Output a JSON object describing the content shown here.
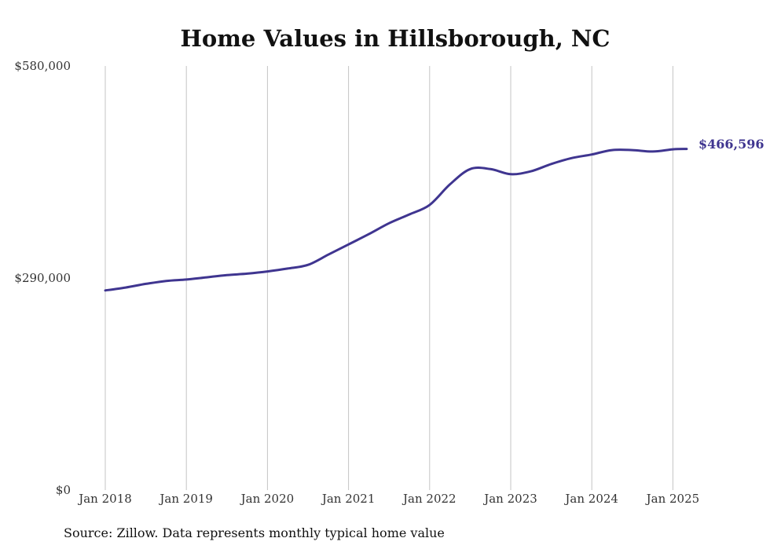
{
  "chart_data": {
    "type": "line",
    "title": "Home Values in Hillsborough, NC",
    "xlabel": "",
    "ylabel": "",
    "ylim": [
      0,
      580000
    ],
    "ytick_values": [
      0,
      290000,
      580000
    ],
    "ytick_labels": [
      "$0",
      "$290,000",
      "$580,000"
    ],
    "xtick_labels": [
      "Jan 2018",
      "Jan 2019",
      "Jan 2020",
      "Jan 2021",
      "Jan 2022",
      "Jan 2023",
      "Jan 2024",
      "Jan 2025"
    ],
    "xtick_years": [
      2018,
      2019,
      2020,
      2021,
      2022,
      2023,
      2024,
      2025
    ],
    "grid": "vertical",
    "line_color": "#3f3590",
    "series": [
      {
        "values": [
          [
            2018.0,
            273000
          ],
          [
            2018.25,
            277000
          ],
          [
            2018.5,
            282000
          ],
          [
            2018.75,
            286000
          ],
          [
            2019.0,
            288000
          ],
          [
            2019.25,
            291000
          ],
          [
            2019.5,
            294000
          ],
          [
            2019.75,
            296000
          ],
          [
            2020.0,
            299000
          ],
          [
            2020.25,
            303000
          ],
          [
            2020.5,
            308000
          ],
          [
            2020.75,
            322000
          ],
          [
            2021.0,
            336000
          ],
          [
            2021.25,
            350000
          ],
          [
            2021.5,
            365000
          ],
          [
            2021.75,
            377000
          ],
          [
            2022.0,
            390000
          ],
          [
            2022.25,
            418000
          ],
          [
            2022.5,
            439000
          ],
          [
            2022.75,
            439000
          ],
          [
            2023.0,
            432000
          ],
          [
            2023.25,
            436000
          ],
          [
            2023.5,
            446000
          ],
          [
            2023.75,
            454000
          ],
          [
            2024.0,
            459000
          ],
          [
            2024.25,
            465000
          ],
          [
            2024.5,
            465000
          ],
          [
            2024.75,
            463000
          ],
          [
            2025.0,
            466000
          ],
          [
            2025.17,
            466596
          ]
        ]
      }
    ],
    "end_label": "$466,596"
  },
  "footer": {
    "source": "Source: Zillow. Data represents monthly typical home value"
  }
}
